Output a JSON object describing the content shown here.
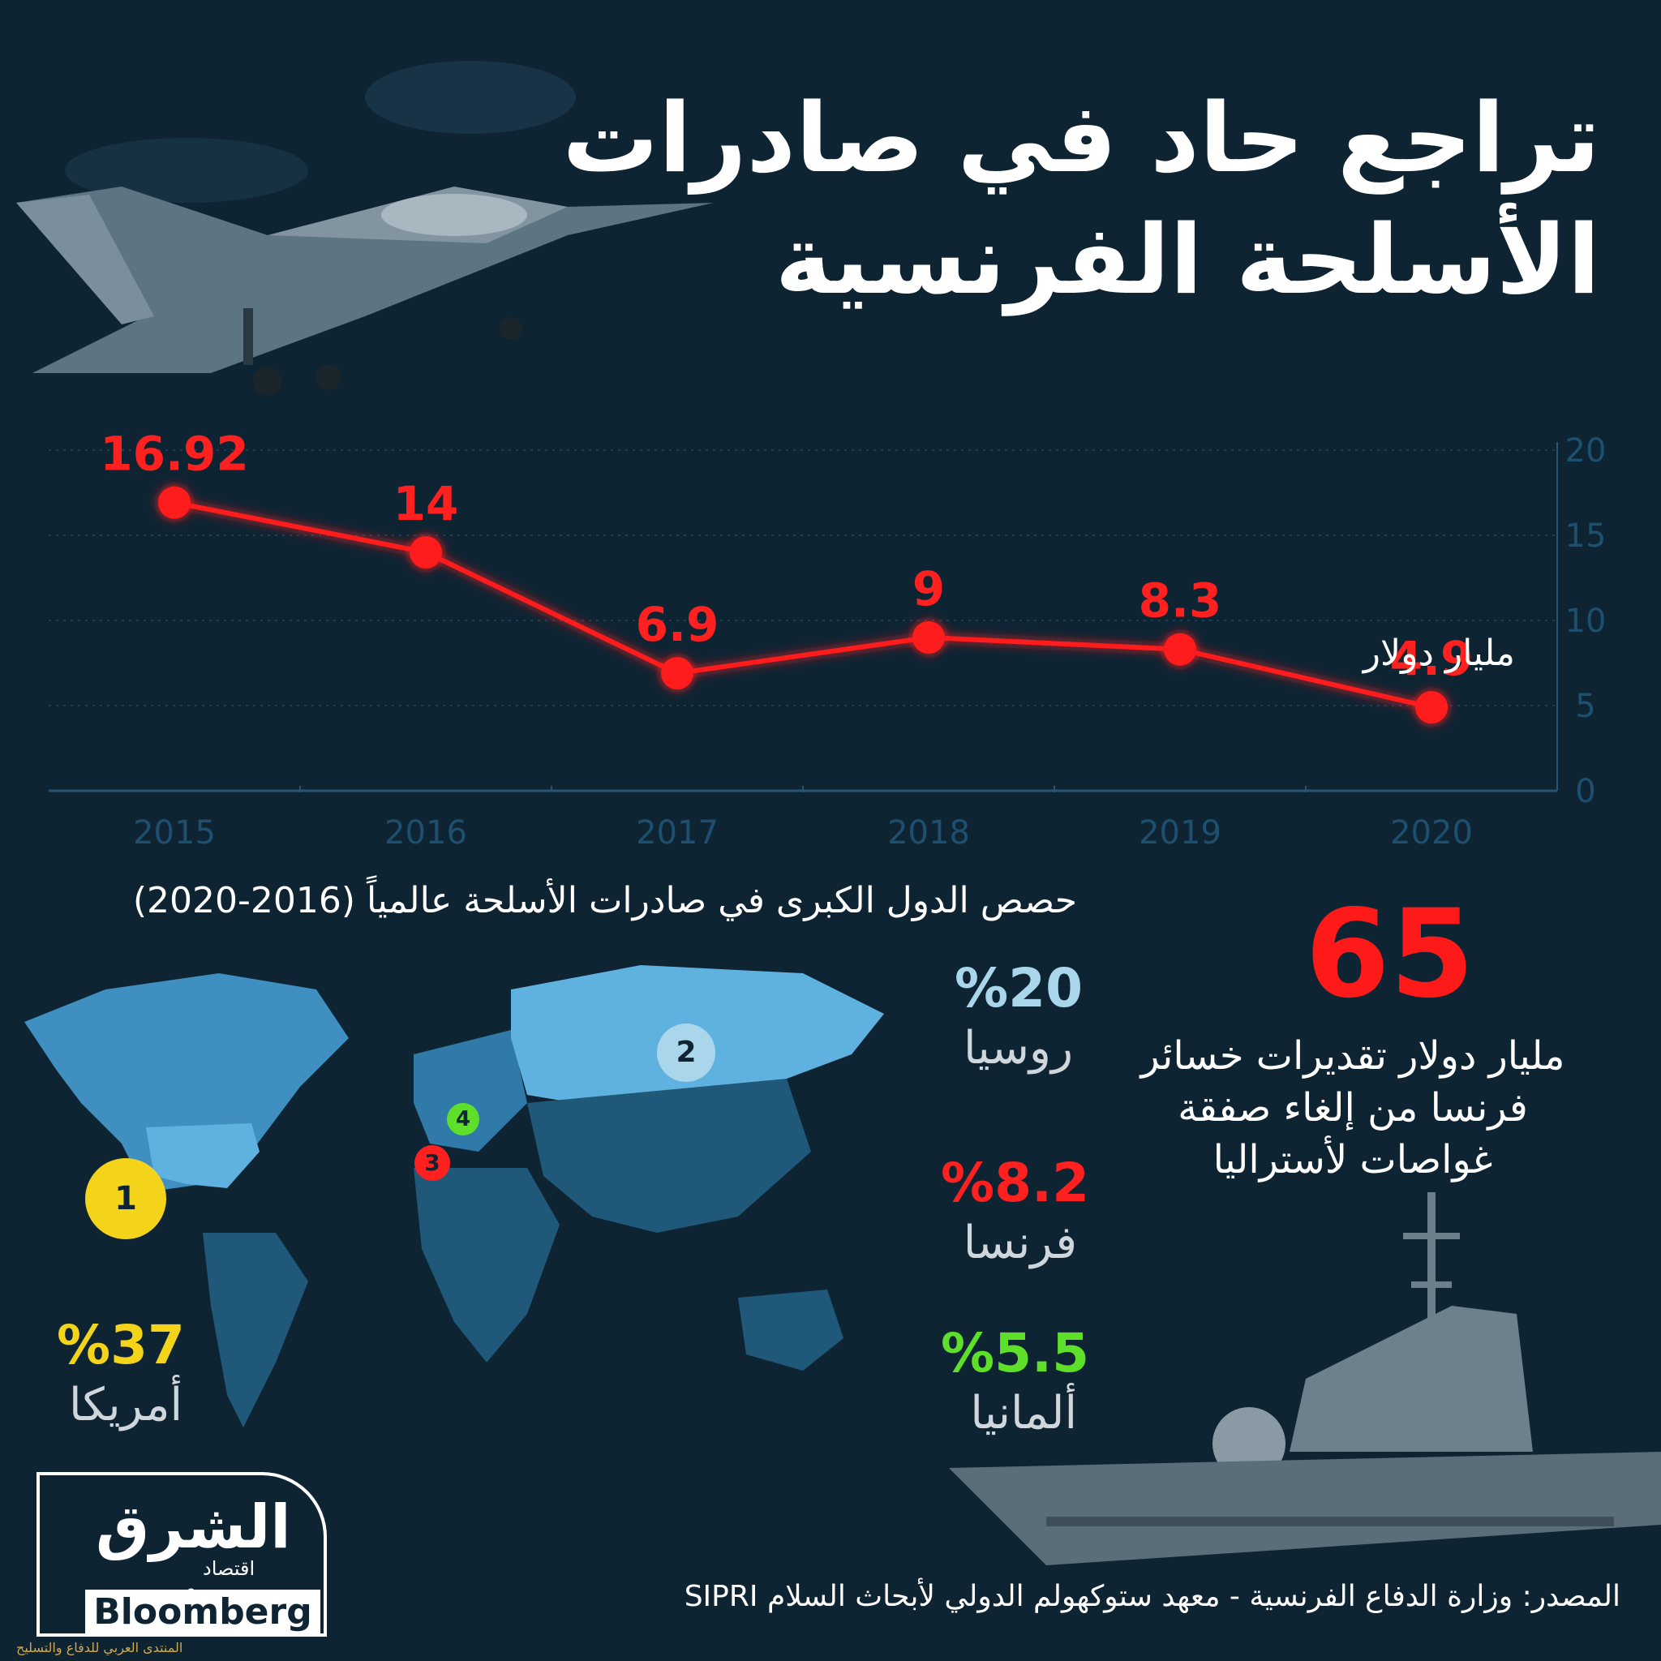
{
  "title_line1": "تراجع حاد في صادرات",
  "title_line2": "الأسلحة الفرنسية",
  "chart_data": {
    "type": "line",
    "x": [
      "2015",
      "2016",
      "2017",
      "2018",
      "2019",
      "2020"
    ],
    "values": [
      16.92,
      14,
      6.9,
      9,
      8.3,
      4.9
    ],
    "data_labels": [
      "16.92",
      "14",
      "6.9",
      "9",
      "8.3",
      "4.9"
    ],
    "y_ticks": [
      "0",
      "5",
      "10",
      "15",
      "20"
    ],
    "ylim": [
      0,
      20
    ],
    "unit": "مليار دولار",
    "line_color": "#ff1a1a",
    "grid": true
  },
  "map_title": "حصص الدول الكبرى في صادرات الأسلحة عالمياً (2016-2020)",
  "shares": [
    {
      "rank": "1",
      "pct": "%37",
      "country": "أمريكا",
      "color": "#f4d41a"
    },
    {
      "rank": "2",
      "pct": "%20",
      "country": "روسيا",
      "color": "#a9d6ea"
    },
    {
      "rank": "3",
      "pct": "%8.2",
      "country": "فرنسا",
      "color": "#ff2020"
    },
    {
      "rank": "4",
      "pct": "%5.5",
      "country": "ألمانيا",
      "color": "#5ee02a"
    }
  ],
  "big_number": "65",
  "big_desc": "مليار دولار تقديرات خسائر فرنسا من إلغاء صفقة غواصات لأستراليا",
  "source": "المصدر: وزارة الدفاع الفرنسية - معهد ستوكهولم الدولي لأبحاث السلام SIPRI",
  "logo": {
    "arabic": "الشرق",
    "sub": "اقتصاد",
    "with": "مع",
    "bloomberg": "Bloomberg"
  },
  "watermark": "المنتدى العربي للدفاع والتسليح"
}
